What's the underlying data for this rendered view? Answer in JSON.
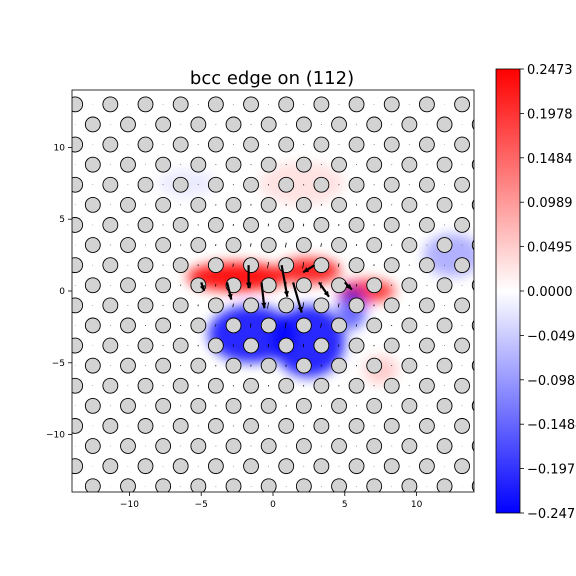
{
  "chart_data": {
    "type": "heatmap",
    "title": "bcc edge on (112)",
    "xlabel": "",
    "ylabel": "",
    "xlim": [
      -14,
      14
    ],
    "ylim": [
      -14,
      14
    ],
    "x_ticks": [
      -10,
      -5,
      0,
      5,
      10
    ],
    "y_ticks": [
      -10,
      -5,
      0,
      5,
      10
    ],
    "colormap": "bwr",
    "colorbar_range": [
      -0.2473,
      0.2473
    ],
    "colorbar_ticks": [
      "0.2473",
      "0.1978",
      "0.1484",
      "0.0989",
      "0.0495",
      "0.0000",
      "-0.0495",
      "-0.0989",
      "-0.1484",
      "-0.1978",
      "-0.2473"
    ],
    "atoms": {
      "lattice_spacing_x": 2.45,
      "row_spacing_y": 1.4,
      "row_offset_x": 1.22,
      "y_range": [
        -13.6,
        13.6
      ],
      "fill_color": "#d3d3d3",
      "edge_color": "#000000"
    },
    "displacement_field": {
      "description": "Arrows showing atomic displacement vectors, largest near dislocation core",
      "core_center": [
        1.0,
        0.0
      ],
      "core_arrows": [
        {
          "x": -1.7,
          "y": 1.8,
          "dx": 0.0,
          "dy": -1.6
        },
        {
          "x": -3.2,
          "y": 0.6,
          "dx": 0.3,
          "dy": -1.2
        },
        {
          "x": -0.8,
          "y": 0.6,
          "dx": 0.2,
          "dy": -1.8
        },
        {
          "x": 0.6,
          "y": 1.8,
          "dx": 0.4,
          "dy": -2.2
        },
        {
          "x": 1.4,
          "y": 0.6,
          "dx": 0.6,
          "dy": -2.1
        },
        {
          "x": 2.9,
          "y": 1.8,
          "dx": -0.8,
          "dy": -0.5
        },
        {
          "x": 3.2,
          "y": 0.6,
          "dx": 0.7,
          "dy": -1.0
        },
        {
          "x": 5.0,
          "y": 0.6,
          "dx": 0.5,
          "dy": -0.5
        },
        {
          "x": -5.0,
          "y": 0.6,
          "dx": 0.2,
          "dy": -0.6
        }
      ]
    },
    "field_lobes": [
      {
        "sign": "positive",
        "x": -2.5,
        "y": 1.0,
        "sx": 3.5,
        "sy": 1.0,
        "amp": 0.24
      },
      {
        "sign": "positive",
        "x": 2.5,
        "y": 1.4,
        "sx": 2.2,
        "sy": 0.9,
        "amp": 0.22
      },
      {
        "sign": "positive",
        "x": 6.5,
        "y": 0.0,
        "sx": 2.0,
        "sy": 0.8,
        "amp": 0.2
      },
      {
        "sign": "positive",
        "x": 7.5,
        "y": -5.5,
        "sx": 1.2,
        "sy": 1.0,
        "amp": 0.05
      },
      {
        "sign": "positive",
        "x": 2.0,
        "y": 7.5,
        "sx": 3.0,
        "sy": 1.5,
        "amp": 0.03
      },
      {
        "sign": "negative",
        "x": -1.5,
        "y": -3.0,
        "sx": 3.0,
        "sy": 2.0,
        "amp": 0.22
      },
      {
        "sign": "negative",
        "x": 2.5,
        "y": -3.5,
        "sx": 2.5,
        "sy": 2.5,
        "amp": 0.22
      },
      {
        "sign": "negative",
        "x": 5.5,
        "y": -1.2,
        "sx": 1.0,
        "sy": 1.5,
        "amp": 0.15
      },
      {
        "sign": "negative",
        "x": 12.5,
        "y": 2.5,
        "sx": 2.0,
        "sy": 1.5,
        "amp": 0.08
      },
      {
        "sign": "negative",
        "x": -6.0,
        "y": 7.5,
        "sx": 2.0,
        "sy": 1.0,
        "amp": 0.02
      }
    ]
  }
}
